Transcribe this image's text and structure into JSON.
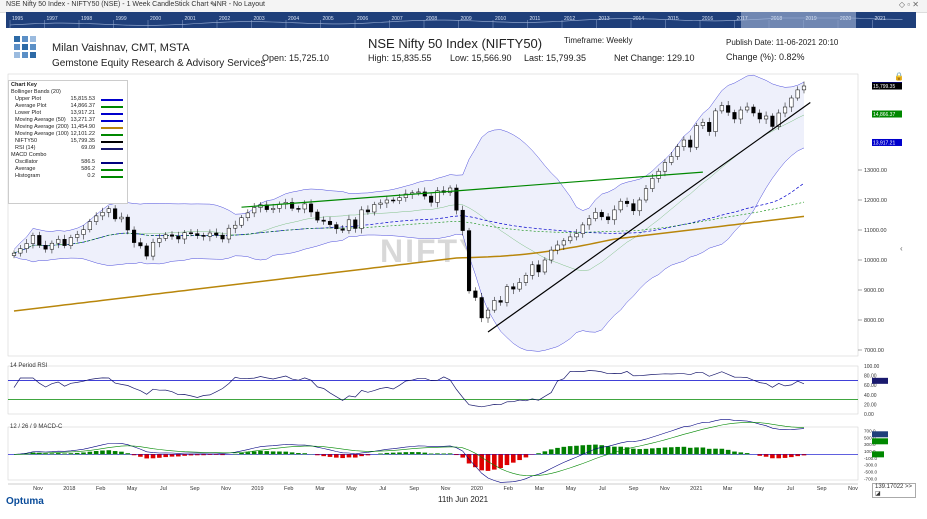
{
  "window": {
    "title": "NSE Nifty 50 Index - NIFTY50 (NSE) - 1 Week CandleStick Chart - INR - No Layout"
  },
  "timeline": {
    "years": [
      "1995",
      "1997",
      "1998",
      "1999",
      "2000",
      "2001",
      "2002",
      "2003",
      "2004",
      "2005",
      "2006",
      "2007",
      "2008",
      "2009",
      "2010",
      "2011",
      "2012",
      "2013",
      "2014",
      "2015",
      "2016",
      "2017",
      "2018",
      "2019",
      "2020",
      "2021"
    ]
  },
  "header": {
    "author": "Milan Vaishnav, CMT, MSTA",
    "firm": "Gemstone Equity Research & Advisory Services",
    "index_title": "NSE Nifty 50 Index (NIFTY50)",
    "timeframe": "Timeframe: Weekly",
    "publish": "Publish Date: 11-06-2021 20:10",
    "change_pct": "Change (%): 0.82%",
    "open": "Open: 15,725.10",
    "high": "High: 15,835.55",
    "low": "Low: 15,566.90",
    "last": "Last: 15,799.35",
    "net_change": "Net Change: 129.10"
  },
  "colors": {
    "price_up": "#ffffff",
    "price_down": "#000000",
    "upper": "#0000cc",
    "average": "#008800",
    "lower": "#0000cc",
    "ma50": "#0000cc",
    "ma200": "#b8860b",
    "ma100": "#008800",
    "rsi": "#1a1a6e",
    "macd": "#000080",
    "signal": "#008800",
    "hist_pos": "#008000",
    "hist_neg": "#dd0000",
    "trend": "#000000",
    "resistance": "#008800"
  },
  "chart_key": {
    "title": "Chart Key",
    "rows": [
      {
        "name": "Bollinger Bands (20)",
        "value": "",
        "color": ""
      },
      {
        "name": "Upper Plot",
        "value": "15,815.53",
        "color": "#0000cc"
      },
      {
        "name": "Average Plot",
        "value": "14,866.37",
        "color": "#008800"
      },
      {
        "name": "Lower Plot",
        "value": "13,917.21",
        "color": "#0000cc"
      },
      {
        "name": "Moving Average (50)",
        "value": "13,271.37",
        "color": "#0000cc"
      },
      {
        "name": "Moving Average (200)",
        "value": "11,454.90",
        "color": "#b8860b"
      },
      {
        "name": "Moving Average (100)",
        "value": "12,101.22",
        "color": "#008800"
      },
      {
        "name": "NIFTY50",
        "value": "15,799.35",
        "color": "#000000"
      },
      {
        "name": "RSI (14)",
        "value": "69.09",
        "color": "#1a1a6e"
      },
      {
        "name": "MACD Combo",
        "value": "",
        "color": ""
      },
      {
        "name": "Oscillator",
        "value": "586.5",
        "color": "#000080"
      },
      {
        "name": "Average",
        "value": "586.2",
        "color": "#008800"
      },
      {
        "name": "Histogram",
        "value": "0.2",
        "color": "#008800"
      }
    ]
  },
  "watermark": "NIFTY50",
  "panels": {
    "rsi_label": "14 Period RSI",
    "macd_label": "12 / 26 / 9 MACD-C"
  },
  "footer": {
    "date": "11th Jun 2021",
    "logo": "Optuma",
    "box": "139.17022 >> ◪"
  },
  "chart_data": {
    "type": "candlestick",
    "interval": "weekly",
    "x_tick_labels": [
      "Nov",
      "2018",
      "Feb",
      "May",
      "Jul",
      "Sep",
      "Nov",
      "2019",
      "Feb",
      "Mar",
      "May",
      "Jul",
      "Sep",
      "Nov",
      "2020",
      "Feb",
      "Mar",
      "May",
      "Jul",
      "Sep",
      "Nov",
      "2021",
      "Mar",
      "May",
      "Jul",
      "Sep",
      "Nov"
    ],
    "price_axis": {
      "ticks": [
        7000,
        8000,
        9000,
        10000,
        11000,
        12000,
        13000
      ],
      "ylim": [
        6800,
        16200
      ]
    },
    "price_axis_labels": [
      "7000.00",
      "8000.00",
      "9000.00",
      "10000.00",
      "11000.00",
      "12000.00",
      "13000.00"
    ],
    "value_badges": [
      {
        "label": "15,815.53",
        "value": 15815.53,
        "color": "#0000cc"
      },
      {
        "label": "15,799.35",
        "value": 15799.35,
        "color": "#000000"
      },
      {
        "label": "14,866.37",
        "value": 14866.37,
        "color": "#008800"
      },
      {
        "label": "13,917.21",
        "value": 13917.21,
        "color": "#0000cc"
      }
    ],
    "close": [
      10230,
      10380,
      10550,
      10820,
      10490,
      10360,
      10560,
      10690,
      10480,
      10750,
      10850,
      11010,
      11280,
      11470,
      11590,
      11710,
      11370,
      11430,
      11000,
      10580,
      10470,
      10130,
      10590,
      10720,
      10840,
      10790,
      10700,
      10910,
      10880,
      10820,
      10790,
      10900,
      10830,
      10700,
      11060,
      11160,
      11410,
      11570,
      11750,
      11840,
      11680,
      11720,
      11860,
      11920,
      11720,
      11700,
      11870,
      11600,
      11330,
      11290,
      11180,
      11040,
      10990,
      11340,
      11050,
      11670,
      11600,
      11850,
      11900,
      12000,
      11980,
      12080,
      12200,
      12240,
      12270,
      12130,
      11920,
      12310,
      12250,
      12400,
      11660,
      10980,
      8970,
      8750,
      8070,
      8330,
      8650,
      8590,
      9110,
      9030,
      9250,
      9490,
      9840,
      9600,
      10000,
      10330,
      10500,
      10640,
      10770,
      10880,
      11170,
      11380,
      11590,
      11440,
      11340,
      11670,
      11960,
      11880,
      11640,
      12000,
      12380,
      12720,
      12960,
      13250,
      13450,
      13780,
      14000,
      13760,
      14480,
      14590,
      14280,
      14970,
      15150,
      14920,
      14700,
      15000,
      15100,
      14900,
      14700,
      14800,
      14450,
      14900,
      15100,
      15400,
      15670,
      15800
    ],
    "upper_band_start": 11900,
    "trendline": {
      "from": {
        "index": 75,
        "value": 7600
      },
      "to": {
        "index": 126,
        "value": 15250
      }
    },
    "resistance_line": {
      "from": {
        "index": 36,
        "value": 11760
      },
      "to": {
        "index": 109,
        "value": 12930
      }
    },
    "rsi_axis": {
      "ticks": [
        0,
        20,
        40,
        60,
        80,
        100
      ],
      "tick_labels": [
        "0.00",
        "20.00",
        "40.00",
        "60.00",
        "80.00",
        "100.00"
      ],
      "ylim": [
        0,
        100
      ],
      "value": 69.09,
      "levels": [
        70,
        30
      ]
    },
    "macd_axis": {
      "ticks": [
        -700,
        -500,
        -300,
        -100,
        100,
        300,
        500,
        700
      ],
      "tick_labels": [
        "-700.0",
        "-500.0",
        "-300.0",
        "-100.0",
        "100.0",
        "300.0",
        "500.0",
        "700.0"
      ],
      "ylim": [
        -750,
        800
      ],
      "oscillator": 586.5,
      "average": 586.2,
      "histogram": 0.2
    }
  }
}
